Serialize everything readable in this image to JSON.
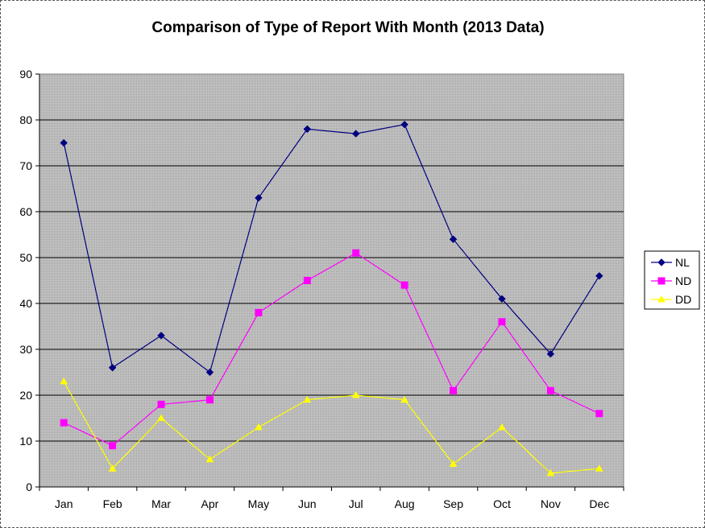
{
  "chart_data": {
    "type": "line",
    "title": "Comparison of Type of Report With Month (2013 Data)",
    "xlabel": "",
    "ylabel": "",
    "categories": [
      "Jan",
      "Feb",
      "Mar",
      "Apr",
      "May",
      "Jun",
      "Jul",
      "Aug",
      "Sep",
      "Oct",
      "Nov",
      "Dec"
    ],
    "ylim": [
      0,
      90
    ],
    "yticks": [
      "0",
      "10",
      "20",
      "30",
      "40",
      "50",
      "60",
      "70",
      "80",
      "90"
    ],
    "grid": true,
    "legend_position": "right",
    "plot_background": "#c0c0c0",
    "series": [
      {
        "name": "NL",
        "color": "#000080",
        "marker": "diamond",
        "values": [
          75,
          26,
          33,
          25,
          63,
          78,
          77,
          79,
          54,
          41,
          29,
          46
        ]
      },
      {
        "name": "ND",
        "color": "#ff00ff",
        "marker": "square",
        "values": [
          14,
          9,
          18,
          19,
          38,
          45,
          51,
          44,
          21,
          36,
          21,
          16
        ]
      },
      {
        "name": "DD",
        "color": "#ffff00",
        "marker": "triangle",
        "values": [
          23,
          4,
          15,
          6,
          13,
          19,
          20,
          19,
          5,
          13,
          3,
          4
        ]
      }
    ]
  }
}
